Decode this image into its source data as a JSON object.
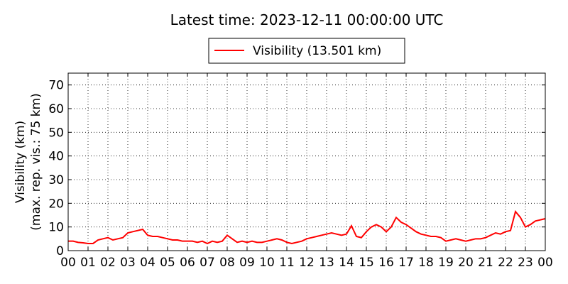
{
  "chart_data": {
    "type": "line",
    "title": "Latest time: 2023-12-11 00:00:00 UTC",
    "ylabel": [
      "Visibility (km)",
      "(max. rep. vis.: 75 km)"
    ],
    "xlim": [
      0,
      24
    ],
    "ylim": [
      0,
      75
    ],
    "xticks": [
      {
        "value": 0,
        "label": "00"
      },
      {
        "value": 1,
        "label": "01"
      },
      {
        "value": 2,
        "label": "02"
      },
      {
        "value": 3,
        "label": "03"
      },
      {
        "value": 4,
        "label": "04"
      },
      {
        "value": 5,
        "label": "05"
      },
      {
        "value": 6,
        "label": "06"
      },
      {
        "value": 7,
        "label": "07"
      },
      {
        "value": 8,
        "label": "08"
      },
      {
        "value": 9,
        "label": "09"
      },
      {
        "value": 10,
        "label": "10"
      },
      {
        "value": 11,
        "label": "11"
      },
      {
        "value": 12,
        "label": "12"
      },
      {
        "value": 13,
        "label": "13"
      },
      {
        "value": 14,
        "label": "14"
      },
      {
        "value": 15,
        "label": "15"
      },
      {
        "value": 16,
        "label": "16"
      },
      {
        "value": 17,
        "label": "17"
      },
      {
        "value": 18,
        "label": "18"
      },
      {
        "value": 19,
        "label": "19"
      },
      {
        "value": 20,
        "label": "20"
      },
      {
        "value": 21,
        "label": "21"
      },
      {
        "value": 22,
        "label": "22"
      },
      {
        "value": 23,
        "label": "23"
      },
      {
        "value": 24,
        "label": "00"
      }
    ],
    "yticks": [
      0,
      10,
      20,
      30,
      40,
      50,
      60,
      70
    ],
    "grid": true,
    "x": [
      0,
      0.25,
      0.5,
      0.75,
      1,
      1.25,
      1.5,
      1.75,
      2,
      2.25,
      2.5,
      2.75,
      3,
      3.25,
      3.5,
      3.75,
      4,
      4.25,
      4.5,
      4.75,
      5,
      5.25,
      5.5,
      5.75,
      6,
      6.25,
      6.5,
      6.75,
      7,
      7.25,
      7.5,
      7.75,
      8,
      8.25,
      8.5,
      8.75,
      9,
      9.25,
      9.5,
      9.75,
      10,
      10.25,
      10.5,
      10.75,
      11,
      11.25,
      11.5,
      11.75,
      12,
      12.25,
      12.5,
      12.75,
      13,
      13.25,
      13.5,
      13.75,
      14,
      14.25,
      14.5,
      14.75,
      15,
      15.25,
      15.5,
      15.75,
      16,
      16.25,
      16.5,
      16.75,
      17,
      17.25,
      17.5,
      17.75,
      18,
      18.25,
      18.5,
      18.75,
      19,
      19.25,
      19.5,
      19.75,
      20,
      20.25,
      20.5,
      20.75,
      21,
      21.25,
      21.5,
      21.75,
      22,
      22.25,
      22.5,
      22.75,
      23,
      23.25,
      23.5,
      23.75,
      24
    ],
    "series": [
      {
        "name": "Visibility (13.501 km)",
        "color": "#ff0000",
        "values": [
          4,
          4,
          3.5,
          3.3,
          3,
          3,
          4.5,
          5,
          5.5,
          4.5,
          5,
          5.5,
          7.5,
          8,
          8.5,
          9,
          6.5,
          6,
          6,
          5.5,
          5,
          4.5,
          4.5,
          4,
          4,
          4,
          3.5,
          4,
          3,
          4,
          3.5,
          4,
          6.5,
          5,
          3.5,
          4,
          3.5,
          4,
          3.5,
          3.5,
          4,
          4.5,
          5,
          4.5,
          3.5,
          3,
          3.5,
          4,
          5,
          5.5,
          6,
          6.5,
          7,
          7.5,
          7,
          6.5,
          7,
          10.5,
          6,
          5.5,
          8,
          10,
          11,
          10,
          8,
          10,
          14,
          12,
          11,
          9.5,
          8,
          7,
          6.5,
          6,
          6,
          5.5,
          4,
          4.5,
          5,
          4.5,
          4,
          4.5,
          5,
          5,
          5.5,
          6.5,
          7.5,
          7,
          8,
          8.5,
          16.5,
          14,
          10,
          11,
          12.5,
          13,
          13.5
        ]
      }
    ]
  }
}
